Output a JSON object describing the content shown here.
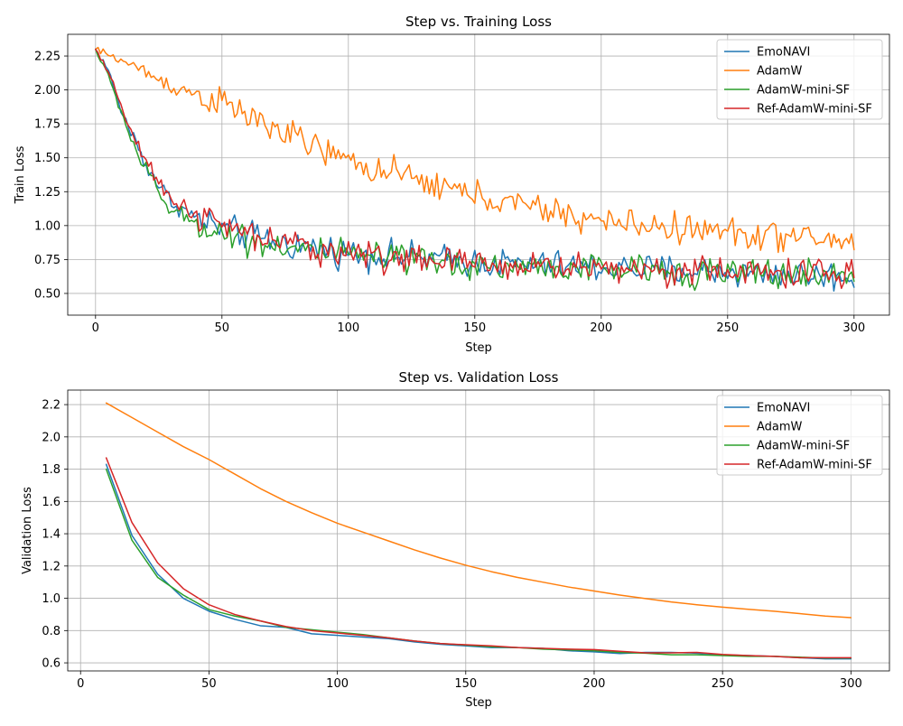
{
  "chart_data": [
    {
      "type": "line",
      "title": "Step vs. Training Loss",
      "xlabel": "Step",
      "ylabel": "Train Loss",
      "xlim": [
        -11,
        314
      ],
      "ylim": [
        0.34,
        2.41
      ],
      "xticks": [
        0,
        50,
        100,
        150,
        200,
        250,
        300
      ],
      "yticks": [
        0.5,
        0.75,
        1.0,
        1.25,
        1.5,
        1.75,
        2.0,
        2.25
      ],
      "ytick_labels": [
        "0.50",
        "0.75",
        "1.00",
        "1.25",
        "1.50",
        "1.75",
        "2.00",
        "2.25"
      ],
      "grid": true,
      "legend_loc": "top-right",
      "noisy": true,
      "x_step": 1,
      "series": [
        {
          "name": "EmoNAVI",
          "color": "#1f77b4",
          "noise": 0.11,
          "keypoints": [
            [
              0,
              2.3
            ],
            [
              5,
              2.15
            ],
            [
              10,
              1.85
            ],
            [
              15,
              1.65
            ],
            [
              20,
              1.45
            ],
            [
              25,
              1.3
            ],
            [
              30,
              1.18
            ],
            [
              40,
              1.05
            ],
            [
              50,
              0.98
            ],
            [
              60,
              0.93
            ],
            [
              80,
              0.85
            ],
            [
              100,
              0.8
            ],
            [
              130,
              0.76
            ],
            [
              160,
              0.72
            ],
            [
              200,
              0.69
            ],
            [
              250,
              0.66
            ],
            [
              300,
              0.62
            ]
          ]
        },
        {
          "name": "AdamW",
          "color": "#ff7f0e",
          "noise": 0.11,
          "keypoints": [
            [
              0,
              2.3
            ],
            [
              10,
              2.22
            ],
            [
              20,
              2.13
            ],
            [
              30,
              2.03
            ],
            [
              50,
              1.9
            ],
            [
              70,
              1.72
            ],
            [
              100,
              1.47
            ],
            [
              130,
              1.32
            ],
            [
              160,
              1.18
            ],
            [
              200,
              1.03
            ],
            [
              250,
              0.95
            ],
            [
              300,
              0.88
            ]
          ]
        },
        {
          "name": "AdamW-mini-SF",
          "color": "#2ca02c",
          "noise": 0.11,
          "keypoints": [
            [
              0,
              2.3
            ],
            [
              5,
              2.1
            ],
            [
              10,
              1.85
            ],
            [
              15,
              1.6
            ],
            [
              20,
              1.4
            ],
            [
              25,
              1.25
            ],
            [
              30,
              1.1
            ],
            [
              40,
              1.02
            ],
            [
              50,
              0.95
            ],
            [
              60,
              0.9
            ],
            [
              80,
              0.83
            ],
            [
              100,
              0.78
            ],
            [
              130,
              0.73
            ],
            [
              160,
              0.7
            ],
            [
              200,
              0.68
            ],
            [
              250,
              0.65
            ],
            [
              300,
              0.63
            ]
          ]
        },
        {
          "name": "Ref-AdamW-mini-SF",
          "color": "#d62728",
          "noise": 0.11,
          "keypoints": [
            [
              0,
              2.3
            ],
            [
              5,
              2.12
            ],
            [
              10,
              1.9
            ],
            [
              15,
              1.65
            ],
            [
              20,
              1.45
            ],
            [
              25,
              1.3
            ],
            [
              30,
              1.2
            ],
            [
              40,
              1.08
            ],
            [
              50,
              1.0
            ],
            [
              60,
              0.93
            ],
            [
              80,
              0.85
            ],
            [
              100,
              0.8
            ],
            [
              130,
              0.74
            ],
            [
              160,
              0.71
            ],
            [
              200,
              0.69
            ],
            [
              250,
              0.66
            ],
            [
              300,
              0.64
            ]
          ]
        }
      ]
    },
    {
      "type": "line",
      "title": "Step vs. Validation Loss",
      "xlabel": "Step",
      "ylabel": "Validation Loss",
      "xlim": [
        -5,
        315
      ],
      "ylim": [
        0.55,
        2.29
      ],
      "xticks": [
        0,
        50,
        100,
        150,
        200,
        250,
        300
      ],
      "yticks": [
        0.6,
        0.8,
        1.0,
        1.2,
        1.4,
        1.6,
        1.8,
        2.0,
        2.2
      ],
      "ytick_labels": [
        "0.6",
        "0.8",
        "1.0",
        "1.2",
        "1.4",
        "1.6",
        "1.8",
        "2.0",
        "2.2"
      ],
      "grid": true,
      "legend_loc": "top-right",
      "noisy": false,
      "x": [
        10,
        20,
        30,
        40,
        50,
        60,
        70,
        80,
        90,
        100,
        110,
        120,
        130,
        140,
        150,
        160,
        170,
        180,
        190,
        200,
        210,
        220,
        230,
        240,
        250,
        260,
        270,
        280,
        290,
        300
      ],
      "series": [
        {
          "name": "EmoNAVI",
          "color": "#1f77b4",
          "values": [
            1.83,
            1.39,
            1.15,
            1.0,
            0.92,
            0.87,
            0.83,
            0.82,
            0.78,
            0.77,
            0.76,
            0.75,
            0.73,
            0.715,
            0.705,
            0.695,
            0.695,
            0.69,
            0.675,
            0.668,
            0.658,
            0.665,
            0.665,
            0.66,
            0.65,
            0.645,
            0.64,
            0.632,
            0.625,
            0.625
          ]
        },
        {
          "name": "AdamW",
          "color": "#ff7f0e",
          "values": [
            2.21,
            2.12,
            2.03,
            1.94,
            1.86,
            1.77,
            1.68,
            1.6,
            1.53,
            1.465,
            1.41,
            1.355,
            1.3,
            1.25,
            1.205,
            1.165,
            1.13,
            1.1,
            1.07,
            1.045,
            1.02,
            0.998,
            0.977,
            0.96,
            0.945,
            0.932,
            0.92,
            0.905,
            0.89,
            0.88
          ]
        },
        {
          "name": "AdamW-mini-SF",
          "color": "#2ca02c",
          "values": [
            1.8,
            1.36,
            1.13,
            1.02,
            0.93,
            0.89,
            0.86,
            0.82,
            0.805,
            0.79,
            0.775,
            0.755,
            0.735,
            0.72,
            0.71,
            0.7,
            0.695,
            0.685,
            0.68,
            0.675,
            0.665,
            0.66,
            0.65,
            0.65,
            0.645,
            0.64,
            0.64,
            0.635,
            0.63,
            0.63
          ]
        },
        {
          "name": "Ref-AdamW-mini-SF",
          "color": "#d62728",
          "values": [
            1.87,
            1.47,
            1.22,
            1.06,
            0.96,
            0.9,
            0.86,
            0.825,
            0.8,
            0.785,
            0.77,
            0.755,
            0.735,
            0.72,
            0.712,
            0.705,
            0.695,
            0.69,
            0.685,
            0.682,
            0.672,
            0.662,
            0.662,
            0.665,
            0.652,
            0.645,
            0.64,
            0.632,
            0.632,
            0.632
          ]
        }
      ]
    }
  ]
}
